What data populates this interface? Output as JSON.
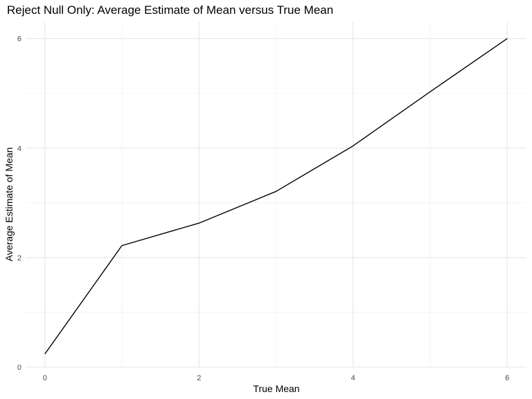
{
  "chart_data": {
    "type": "line",
    "title": "Reject Null Only: Average Estimate of Mean versus True Mean",
    "xlabel": "True Mean",
    "ylabel": "Average Estimate of Mean",
    "xlim": [
      -0.25,
      6.25
    ],
    "ylim": [
      0,
      6.3
    ],
    "x_ticks": [
      0,
      2,
      4,
      6
    ],
    "y_ticks": [
      0,
      2,
      4,
      6
    ],
    "x_ticks_minor": [
      1,
      3,
      5
    ],
    "y_ticks_minor": [
      1,
      3,
      5
    ],
    "x_tick_labels": [
      "0",
      "2",
      "4",
      "6"
    ],
    "y_tick_labels": [
      "0",
      "2",
      "4",
      "6"
    ],
    "grid": true,
    "legend": "none",
    "series": [
      {
        "color": "#000000",
        "x": [
          0,
          1,
          2,
          3,
          4,
          5,
          6
        ],
        "y": [
          0.24,
          2.22,
          2.63,
          3.21,
          4.04,
          5.03,
          6.0
        ]
      }
    ]
  }
}
